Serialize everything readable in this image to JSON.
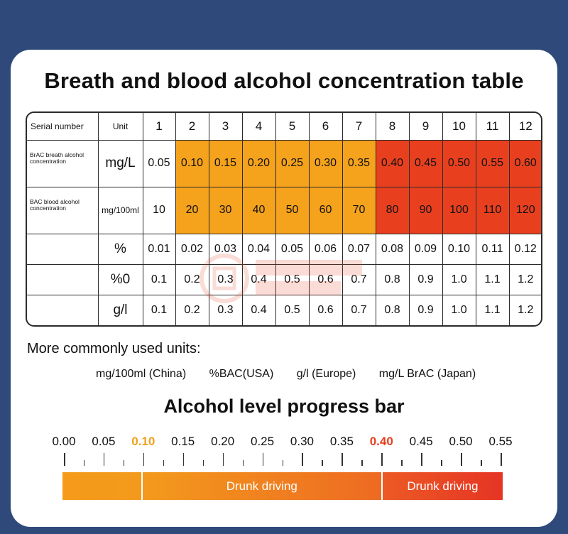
{
  "title": "Breath and blood alcohol concentration table",
  "table": {
    "header": {
      "serial": "Serial number",
      "unit": "Unit",
      "numbers": [
        "1",
        "2",
        "3",
        "4",
        "5",
        "6",
        "7",
        "8",
        "9",
        "10",
        "11",
        "12"
      ]
    },
    "rows": [
      {
        "label": "BrAC breath alcohol concentration",
        "unit": "mg/L",
        "values": [
          "0.05",
          "0.10",
          "0.15",
          "0.20",
          "0.25",
          "0.30",
          "0.35",
          "0.40",
          "0.45",
          "0.50",
          "0.55",
          "0.60"
        ]
      },
      {
        "label": "BAC blood alcohol concentration",
        "unit": "mg/100ml",
        "values": [
          "10",
          "20",
          "30",
          "40",
          "50",
          "60",
          "70",
          "80",
          "90",
          "100",
          "110",
          "120"
        ]
      },
      {
        "label": "",
        "unit": "%",
        "values": [
          "0.01",
          "0.02",
          "0.03",
          "0.04",
          "0.05",
          "0.06",
          "0.07",
          "0.08",
          "0.09",
          "0.10",
          "0.11",
          "0.12"
        ]
      },
      {
        "label": "",
        "unit": "%0",
        "values": [
          "0.1",
          "0.2",
          "0.3",
          "0.4",
          "0.5",
          "0.6",
          "0.7",
          "0.8",
          "0.9",
          "1.0",
          "1.1",
          "1.2"
        ]
      },
      {
        "label": "",
        "unit": "g/l",
        "values": [
          "0.1",
          "0.2",
          "0.3",
          "0.4",
          "0.5",
          "0.6",
          "0.7",
          "0.8",
          "0.9",
          "1.0",
          "1.1",
          "1.2"
        ]
      }
    ],
    "colors": {
      "drunk_driving": "#f5a21d",
      "drunk_driving_severe": "#e8401f"
    }
  },
  "units_heading": "More commonly used units:",
  "units": [
    "mg/100ml (China)",
    "%BAC(USA)",
    "g/l (Europe)",
    "mg/L BrAC (Japan)"
  ],
  "progress_bar": {
    "title": "Alcohol level progress bar",
    "scale": [
      "0.00",
      "0.05",
      "0.10",
      "0.15",
      "0.20",
      "0.25",
      "0.30",
      "0.35",
      "0.40",
      "0.45",
      "0.50",
      "0.55"
    ],
    "highlight_orange": "0.10",
    "highlight_red": "0.40",
    "segments": [
      {
        "label": "",
        "from": 0.0,
        "to": 0.1
      },
      {
        "label": "Drunk driving",
        "from": 0.1,
        "to": 0.4
      },
      {
        "label": "Drunk driving",
        "from": 0.4,
        "to": 0.55
      }
    ]
  }
}
